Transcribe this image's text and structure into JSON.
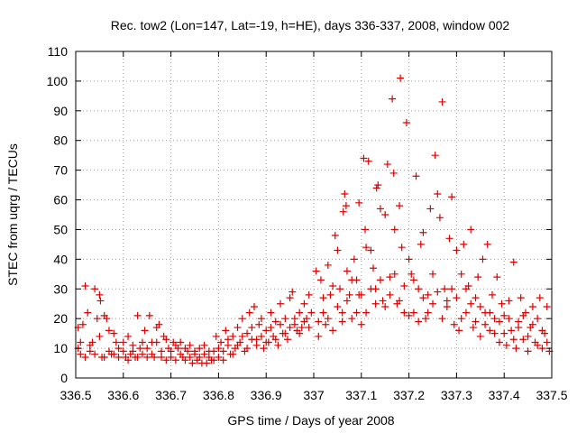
{
  "chart_data": {
    "type": "scatter",
    "title": "Rec. tow2 (Lon=147, Lat=-19, h=HE), days 336-337, 2008, window 002",
    "xlabel": "GPS time / Days of year 2008",
    "ylabel": "STEC from uqrg / TECUs",
    "xlim": [
      336.5,
      337.5
    ],
    "ylim": [
      0,
      110
    ],
    "xticks": [
      336.5,
      336.6,
      336.7,
      336.8,
      336.9,
      337,
      337.1,
      337.2,
      337.3,
      337.4,
      337.5
    ],
    "xtick_labels": [
      "336.5",
      "336.6",
      "336.7",
      "336.8",
      "336.9",
      "337",
      "337.1",
      "337.2",
      "337.3",
      "337.4",
      "337.5"
    ],
    "yticks": [
      0,
      10,
      20,
      30,
      40,
      50,
      60,
      70,
      80,
      90,
      100,
      110
    ],
    "ytick_labels": [
      "0",
      "10",
      "20",
      "30",
      "40",
      "50",
      "60",
      "70",
      "80",
      "90",
      "100",
      "110"
    ],
    "grid": true,
    "marker": "+",
    "color": "#dd0000",
    "series": [
      {
        "name": "STEC",
        "points": [
          [
            336.505,
            10
          ],
          [
            336.51,
            8
          ],
          [
            336.515,
            18
          ],
          [
            336.52,
            31
          ],
          [
            336.525,
            22
          ],
          [
            336.53,
            9
          ],
          [
            336.535,
            12
          ],
          [
            336.54,
            30
          ],
          [
            336.545,
            20
          ],
          [
            336.55,
            28
          ],
          [
            336.552,
            26
          ],
          [
            336.555,
            7
          ],
          [
            336.56,
            21
          ],
          [
            336.565,
            20
          ],
          [
            336.57,
            16
          ],
          [
            336.575,
            8
          ],
          [
            336.58,
            15
          ],
          [
            336.585,
            12
          ],
          [
            336.59,
            7
          ],
          [
            336.505,
            17
          ],
          [
            336.51,
            12
          ],
          [
            336.52,
            7
          ],
          [
            336.53,
            11
          ],
          [
            336.54,
            8
          ],
          [
            336.55,
            14
          ],
          [
            336.56,
            7
          ],
          [
            336.57,
            9
          ],
          [
            336.58,
            8
          ],
          [
            336.59,
            10
          ],
          [
            336.6,
            9
          ],
          [
            336.605,
            7
          ],
          [
            336.61,
            14
          ],
          [
            336.615,
            8
          ],
          [
            336.62,
            11
          ],
          [
            336.625,
            7
          ],
          [
            336.63,
            21
          ],
          [
            336.635,
            10
          ],
          [
            336.64,
            8
          ],
          [
            336.645,
            16
          ],
          [
            336.65,
            7
          ],
          [
            336.655,
            21
          ],
          [
            336.66,
            12
          ],
          [
            336.665,
            7
          ],
          [
            336.67,
            17
          ],
          [
            336.675,
            18
          ],
          [
            336.68,
            9
          ],
          [
            336.685,
            14
          ],
          [
            336.69,
            6
          ],
          [
            336.695,
            10
          ],
          [
            336.6,
            12
          ],
          [
            336.61,
            6
          ],
          [
            336.62,
            9
          ],
          [
            336.63,
            7
          ],
          [
            336.64,
            12
          ],
          [
            336.65,
            10
          ],
          [
            336.66,
            8
          ],
          [
            336.67,
            12
          ],
          [
            336.68,
            7
          ],
          [
            336.69,
            13
          ],
          [
            336.7,
            7
          ],
          [
            336.705,
            12
          ],
          [
            336.71,
            6
          ],
          [
            336.715,
            10
          ],
          [
            336.72,
            12
          ],
          [
            336.725,
            7
          ],
          [
            336.73,
            6
          ],
          [
            336.735,
            9
          ],
          [
            336.74,
            11
          ],
          [
            336.745,
            5
          ],
          [
            336.75,
            8
          ],
          [
            336.755,
            6
          ],
          [
            336.76,
            10
          ],
          [
            336.765,
            5
          ],
          [
            336.77,
            8
          ],
          [
            336.775,
            5
          ],
          [
            336.78,
            7
          ],
          [
            336.785,
            6
          ],
          [
            336.79,
            9
          ],
          [
            336.795,
            14
          ],
          [
            336.7,
            9
          ],
          [
            336.71,
            11
          ],
          [
            336.72,
            8
          ],
          [
            336.73,
            10
          ],
          [
            336.74,
            7
          ],
          [
            336.75,
            9
          ],
          [
            336.76,
            7
          ],
          [
            336.77,
            11
          ],
          [
            336.78,
            9
          ],
          [
            336.79,
            6
          ],
          [
            336.8,
            7
          ],
          [
            336.805,
            12
          ],
          [
            336.81,
            9
          ],
          [
            336.815,
            16
          ],
          [
            336.82,
            11
          ],
          [
            336.825,
            8
          ],
          [
            336.83,
            14
          ],
          [
            336.835,
            10
          ],
          [
            336.84,
            17
          ],
          [
            336.845,
            12
          ],
          [
            336.85,
            20
          ],
          [
            336.855,
            9
          ],
          [
            336.86,
            15
          ],
          [
            336.865,
            22
          ],
          [
            336.87,
            13
          ],
          [
            336.875,
            24
          ],
          [
            336.88,
            11
          ],
          [
            336.885,
            18
          ],
          [
            336.89,
            14
          ],
          [
            336.895,
            10
          ],
          [
            336.8,
            10
          ],
          [
            336.81,
            6
          ],
          [
            336.82,
            13
          ],
          [
            336.83,
            8
          ],
          [
            336.84,
            11
          ],
          [
            336.85,
            14
          ],
          [
            336.86,
            10
          ],
          [
            336.87,
            17
          ],
          [
            336.88,
            13
          ],
          [
            336.89,
            20
          ],
          [
            336.9,
            16
          ],
          [
            336.905,
            12
          ],
          [
            336.91,
            22
          ],
          [
            336.915,
            14
          ],
          [
            336.92,
            19
          ],
          [
            336.925,
            11
          ],
          [
            336.93,
            25
          ],
          [
            336.935,
            15
          ],
          [
            336.94,
            20
          ],
          [
            336.945,
            13
          ],
          [
            336.95,
            27
          ],
          [
            336.955,
            29
          ],
          [
            336.96,
            18
          ],
          [
            336.965,
            16
          ],
          [
            336.97,
            22
          ],
          [
            336.975,
            17
          ],
          [
            336.98,
            25
          ],
          [
            336.985,
            20
          ],
          [
            336.99,
            28
          ],
          [
            336.995,
            22
          ],
          [
            336.9,
            12
          ],
          [
            336.91,
            17
          ],
          [
            336.92,
            13
          ],
          [
            336.93,
            18
          ],
          [
            336.94,
            15
          ],
          [
            336.95,
            17
          ],
          [
            336.96,
            20
          ],
          [
            336.97,
            15
          ],
          [
            336.98,
            19
          ],
          [
            336.99,
            17
          ],
          [
            337.005,
            36
          ],
          [
            337.01,
            14
          ],
          [
            337.015,
            33
          ],
          [
            337.02,
            22
          ],
          [
            337.025,
            18
          ],
          [
            337.03,
            38
          ],
          [
            337.035,
            28
          ],
          [
            337.04,
            16
          ],
          [
            337.045,
            48
          ],
          [
            337.05,
            43
          ],
          [
            337.055,
            30
          ],
          [
            337.06,
            22
          ],
          [
            337.062,
            56
          ],
          [
            337.065,
            62
          ],
          [
            337.068,
            58
          ],
          [
            337.07,
            36
          ],
          [
            337.075,
            28
          ],
          [
            337.08,
            20
          ],
          [
            337.085,
            40
          ],
          [
            337.09,
            33
          ],
          [
            337.095,
            59
          ],
          [
            337.01,
            19
          ],
          [
            337.02,
            27
          ],
          [
            337.03,
            20
          ],
          [
            337.04,
            31
          ],
          [
            337.05,
            24
          ],
          [
            337.06,
            19
          ],
          [
            337.07,
            26
          ],
          [
            337.08,
            33
          ],
          [
            337.09,
            22
          ],
          [
            337.095,
            28
          ],
          [
            337.1,
            18
          ],
          [
            337.105,
            74
          ],
          [
            337.108,
            50
          ],
          [
            337.11,
            44
          ],
          [
            337.115,
            73
          ],
          [
            337.12,
            43
          ],
          [
            337.125,
            37
          ],
          [
            337.13,
            30
          ],
          [
            337.132,
            64
          ],
          [
            337.135,
            65
          ],
          [
            337.14,
            57
          ],
          [
            337.145,
            26
          ],
          [
            337.15,
            55
          ],
          [
            337.155,
            72
          ],
          [
            337.16,
            34
          ],
          [
            337.165,
            94
          ],
          [
            337.168,
            69
          ],
          [
            337.17,
            50
          ],
          [
            337.175,
            25
          ],
          [
            337.18,
            58
          ],
          [
            337.182,
            101
          ],
          [
            337.185,
            44
          ],
          [
            337.19,
            22
          ],
          [
            337.195,
            86
          ],
          [
            337.1,
            28
          ],
          [
            337.11,
            22
          ],
          [
            337.12,
            30
          ],
          [
            337.13,
            25
          ],
          [
            337.14,
            33
          ],
          [
            337.15,
            24
          ],
          [
            337.16,
            28
          ],
          [
            337.17,
            35
          ],
          [
            337.18,
            26
          ],
          [
            337.19,
            31
          ],
          [
            337.2,
            40
          ],
          [
            337.205,
            35
          ],
          [
            337.21,
            22
          ],
          [
            337.215,
            68
          ],
          [
            337.22,
            30
          ],
          [
            337.225,
            45
          ],
          [
            337.23,
            49
          ],
          [
            337.235,
            20
          ],
          [
            337.24,
            28
          ],
          [
            337.245,
            57
          ],
          [
            337.25,
            25
          ],
          [
            337.255,
            75
          ],
          [
            337.26,
            62
          ],
          [
            337.265,
            54
          ],
          [
            337.27,
            93
          ],
          [
            337.275,
            30
          ],
          [
            337.28,
            24
          ],
          [
            337.285,
            47
          ],
          [
            337.29,
            61
          ],
          [
            337.295,
            18
          ],
          [
            337.2,
            21
          ],
          [
            337.21,
            33
          ],
          [
            337.22,
            19
          ],
          [
            337.23,
            27
          ],
          [
            337.24,
            22
          ],
          [
            337.25,
            35
          ],
          [
            337.26,
            29
          ],
          [
            337.27,
            20
          ],
          [
            337.28,
            26
          ],
          [
            337.29,
            30
          ],
          [
            337.3,
            43
          ],
          [
            337.305,
            16
          ],
          [
            337.31,
            35
          ],
          [
            337.315,
            45
          ],
          [
            337.32,
            22
          ],
          [
            337.325,
            31
          ],
          [
            337.33,
            50
          ],
          [
            337.335,
            17
          ],
          [
            337.34,
            27
          ],
          [
            337.345,
            34
          ],
          [
            337.35,
            14
          ],
          [
            337.355,
            40
          ],
          [
            337.36,
            22
          ],
          [
            337.365,
            45
          ],
          [
            337.37,
            16
          ],
          [
            337.375,
            28
          ],
          [
            337.38,
            20
          ],
          [
            337.385,
            34
          ],
          [
            337.39,
            12
          ],
          [
            337.395,
            25
          ],
          [
            337.3,
            27
          ],
          [
            337.31,
            20
          ],
          [
            337.32,
            30
          ],
          [
            337.33,
            25
          ],
          [
            337.34,
            19
          ],
          [
            337.35,
            24
          ],
          [
            337.36,
            18
          ],
          [
            337.37,
            22
          ],
          [
            337.38,
            15
          ],
          [
            337.39,
            19
          ],
          [
            337.4,
            21
          ],
          [
            337.405,
            11
          ],
          [
            337.41,
            26
          ],
          [
            337.415,
            16
          ],
          [
            337.42,
            39
          ],
          [
            337.425,
            10
          ],
          [
            337.43,
            19
          ],
          [
            337.435,
            27
          ],
          [
            337.44,
            13
          ],
          [
            337.445,
            22
          ],
          [
            337.45,
            9
          ],
          [
            337.455,
            17
          ],
          [
            337.46,
            24
          ],
          [
            337.465,
            12
          ],
          [
            337.47,
            20
          ],
          [
            337.475,
            27
          ],
          [
            337.48,
            10
          ],
          [
            337.485,
            15
          ],
          [
            337.49,
            24
          ],
          [
            337.495,
            9
          ],
          [
            337.4,
            15
          ],
          [
            337.41,
            20
          ],
          [
            337.42,
            13
          ],
          [
            337.43,
            17
          ],
          [
            337.44,
            21
          ],
          [
            337.45,
            14
          ],
          [
            337.46,
            18
          ],
          [
            337.47,
            11
          ],
          [
            337.48,
            16
          ],
          [
            337.49,
            12
          ]
        ]
      }
    ]
  }
}
